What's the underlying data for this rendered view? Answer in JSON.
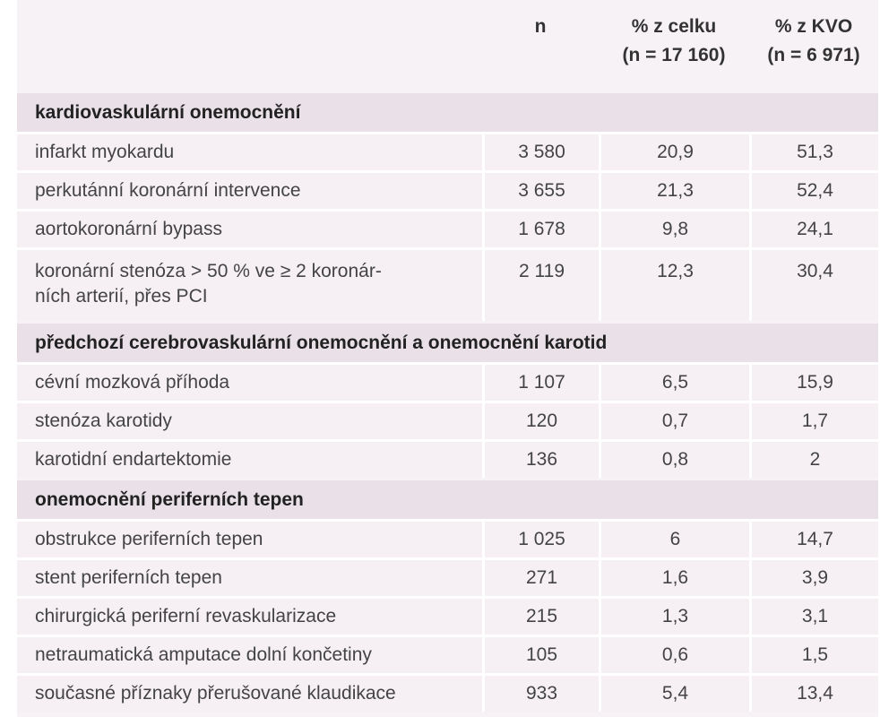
{
  "header": {
    "n": "n",
    "pct_total_line1": "% z celku",
    "pct_total_line2": "(n = 17 160)",
    "pct_kvo_line1": "% z KVO",
    "pct_kvo_line2": "(n = 6 971)"
  },
  "sections": [
    {
      "title": "kardiovaskulární onemocnění",
      "rows": [
        {
          "label": "infarkt myokardu",
          "n": "3 580",
          "pct_total": "20,9",
          "pct_kvo": "51,3"
        },
        {
          "label": "perkutánní koronární intervence",
          "n": "3 655",
          "pct_total": "21,3",
          "pct_kvo": "52,4"
        },
        {
          "label": "aortokoronární bypass",
          "n": "1 678",
          "pct_total": "9,8",
          "pct_kvo": "24,1"
        },
        {
          "label_line1": "koronární stenóza > 50 % ve  ≥ 2 koronár-",
          "label_line2": "ních arterií, přes PCI",
          "n": "2 119",
          "pct_total": "12,3",
          "pct_kvo": "30,4"
        }
      ]
    },
    {
      "title": "předchozí cerebrovaskulární onemocnění a onemocnění karotid",
      "rows": [
        {
          "label": "cévní mozková příhoda",
          "n": "1 107",
          "pct_total": "6,5",
          "pct_kvo": "15,9"
        },
        {
          "label": "stenóza karotidy",
          "n": "120",
          "pct_total": "0,7",
          "pct_kvo": "1,7"
        },
        {
          "label": "karotidní endartektomie",
          "n": "136",
          "pct_total": "0,8",
          "pct_kvo": "2"
        }
      ]
    },
    {
      "title": "onemocnění periferních tepen",
      "rows": [
        {
          "label": "obstrukce periferních tepen",
          "n": "1 025",
          "pct_total": "6",
          "pct_kvo": "14,7"
        },
        {
          "label": "stent periferních tepen",
          "n": "271",
          "pct_total": "1,6",
          "pct_kvo": "3,9"
        },
        {
          "label": "chirurgická periferní revaskularizace",
          "n": "215",
          "pct_total": "1,3",
          "pct_kvo": "3,1"
        },
        {
          "label": "netraumatická amputace dolní končetiny",
          "n": "105",
          "pct_total": "0,6",
          "pct_kvo": "1,5"
        },
        {
          "label": "současné příznaky přerušované klaudikace",
          "n": "933",
          "pct_total": "5,4",
          "pct_kvo": "13,4"
        }
      ]
    }
  ]
}
